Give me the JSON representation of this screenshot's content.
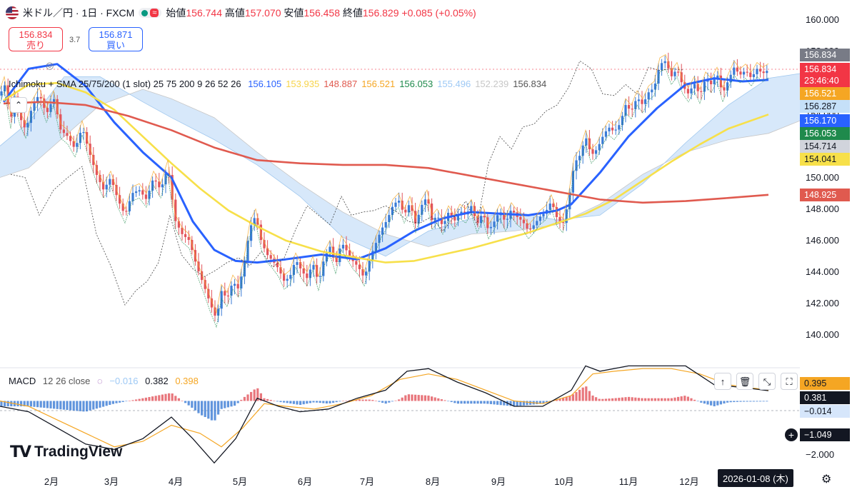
{
  "header": {
    "title": "米ドル／円 · 1日 · FXCM",
    "open_label": "始値",
    "open": "156.744",
    "high_label": "高値",
    "high": "157.070",
    "low_label": "安値",
    "low": "156.458",
    "close_label": "終値",
    "close": "156.829",
    "change": "+0.085 (+0.05%)"
  },
  "trade": {
    "sell_price": "156.834",
    "sell_label": "売り",
    "spread": "3.7",
    "buy_price": "156.871",
    "buy_label": "買い"
  },
  "legend": {
    "name": "Ichimoku + SMA 25/75/200 (1 slot) 25 75 200 9 26 52 26",
    "values": [
      "156.105",
      "153.935",
      "148.887",
      "156.521",
      "156.053",
      "155.496",
      "152.239",
      "156.834"
    ],
    "value_colors": [
      "#2962ff",
      "#f7d44a",
      "#e05a4f",
      "#f5a623",
      "#1f8a4c",
      "#9ec9f5",
      "#c7c7c7",
      "#555555"
    ]
  },
  "macd": {
    "label": "MACD",
    "params": "12 26 close",
    "hist": "−0.016",
    "macd": "0.382",
    "signal": "0.398"
  },
  "price_tags": [
    {
      "text": "156.834",
      "bg": "#787b86"
    },
    {
      "text": "156.834",
      "bg": "#f23645"
    },
    {
      "text": "23:46:40",
      "bg": "#f23645"
    },
    {
      "text": "156.521",
      "bg": "#f5a623"
    },
    {
      "text": "156.287",
      "bg": "#c5e0f8",
      "fg": "#131722"
    },
    {
      "text": "156.170",
      "bg": "#2962ff"
    },
    {
      "text": "156.053",
      "bg": "#1f8a4c"
    },
    {
      "text": "154.714",
      "bg": "#d1d4dc",
      "fg": "#131722"
    },
    {
      "text": "154.041",
      "bg": "#f7e04a",
      "fg": "#131722"
    },
    {
      "text": "148.925",
      "bg": "#e05a4f"
    }
  ],
  "macd_tags": [
    {
      "text": "0.395",
      "bg": "#f5a623",
      "fg": "#131722"
    },
    {
      "text": "0.381",
      "bg": "#131722"
    },
    {
      "text": "−0.014",
      "bg": "#d6e6fb",
      "fg": "#131722"
    },
    {
      "text": "−1.049",
      "bg": "#131722"
    }
  ],
  "date_tag": "2026-01-08 (木)",
  "brand": "TradingView",
  "chart_data": {
    "type": "line",
    "title": "米ドル／円 · 1日 · FXCM",
    "y_ticks": [
      "160.000",
      "158.000",
      "156.000",
      "154.000",
      "152.000",
      "150.000",
      "148.000",
      "146.000",
      "144.000",
      "142.000",
      "140.000"
    ],
    "ylim": [
      139.5,
      160.5
    ],
    "x_ticks": [
      "2月",
      "3月",
      "4月",
      "5月",
      "6月",
      "7月",
      "8月",
      "9月",
      "10月",
      "11月",
      "12月"
    ],
    "macd_ticks": [
      "−2.000"
    ],
    "price_path": [
      [
        0,
        155.2
      ],
      [
        6,
        156.0
      ],
      [
        10,
        155.0
      ],
      [
        15,
        153.6
      ],
      [
        20,
        155.2
      ],
      [
        28,
        153.8
      ],
      [
        36,
        153.0
      ],
      [
        45,
        154.5
      ],
      [
        55,
        155.3
      ],
      [
        65,
        154.0
      ],
      [
        75,
        155.1
      ],
      [
        85,
        153.0
      ],
      [
        95,
        152.6
      ],
      [
        105,
        151.8
      ],
      [
        115,
        153.2
      ],
      [
        125,
        151.6
      ],
      [
        135,
        150.2
      ],
      [
        145,
        149.2
      ],
      [
        155,
        150.0
      ],
      [
        165,
        148.6
      ],
      [
        175,
        147.6
      ],
      [
        185,
        149.0
      ],
      [
        195,
        149.2
      ],
      [
        205,
        148.6
      ],
      [
        215,
        150.0
      ],
      [
        225,
        149.2
      ],
      [
        235,
        150.7
      ],
      [
        245,
        147.3
      ],
      [
        255,
        146.4
      ],
      [
        265,
        146.0
      ],
      [
        275,
        144.4
      ],
      [
        285,
        143.2
      ],
      [
        295,
        141.9
      ],
      [
        303,
        141.0
      ],
      [
        310,
        142.8
      ],
      [
        318,
        142.3
      ],
      [
        326,
        143.4
      ],
      [
        334,
        142.9
      ],
      [
        342,
        144.6
      ],
      [
        350,
        146.8
      ],
      [
        358,
        147.6
      ],
      [
        366,
        145.9
      ],
      [
        374,
        145.1
      ],
      [
        382,
        144.7
      ],
      [
        390,
        144.2
      ],
      [
        398,
        143.4
      ],
      [
        406,
        143.7
      ],
      [
        414,
        144.8
      ],
      [
        422,
        144.1
      ],
      [
        430,
        143.6
      ],
      [
        438,
        144.6
      ],
      [
        446,
        143.3
      ],
      [
        454,
        144.9
      ],
      [
        462,
        145.6
      ],
      [
        470,
        144.4
      ],
      [
        478,
        145.9
      ],
      [
        486,
        145.3
      ],
      [
        494,
        144.7
      ],
      [
        502,
        144.3
      ],
      [
        510,
        143.6
      ],
      [
        518,
        144.9
      ],
      [
        526,
        145.8
      ],
      [
        534,
        146.7
      ],
      [
        542,
        147.3
      ],
      [
        550,
        148.2
      ],
      [
        558,
        148.6
      ],
      [
        566,
        147.6
      ],
      [
        574,
        148.4
      ],
      [
        582,
        147.0
      ],
      [
        590,
        148.2
      ],
      [
        598,
        148.8
      ],
      [
        605,
        147.2
      ],
      [
        612,
        147.6
      ],
      [
        620,
        146.9
      ],
      [
        628,
        147.8
      ],
      [
        636,
        147.2
      ],
      [
        644,
        147.9
      ],
      [
        652,
        147.6
      ],
      [
        660,
        148.2
      ],
      [
        668,
        147.0
      ],
      [
        676,
        147.8
      ],
      [
        684,
        146.6
      ],
      [
        692,
        147.2
      ],
      [
        700,
        147.9
      ],
      [
        708,
        147.1
      ],
      [
        716,
        148.0
      ],
      [
        724,
        147.5
      ],
      [
        732,
        147.2
      ],
      [
        740,
        146.6
      ],
      [
        748,
        147.0
      ],
      [
        756,
        147.5
      ],
      [
        764,
        147.8
      ],
      [
        772,
        148.5
      ],
      [
        780,
        147.4
      ],
      [
        788,
        147.0
      ],
      [
        796,
        148.5
      ],
      [
        804,
        150.9
      ],
      [
        812,
        151.4
      ],
      [
        820,
        152.6
      ],
      [
        828,
        151.4
      ],
      [
        836,
        151.8
      ],
      [
        844,
        152.6
      ],
      [
        852,
        153.2
      ],
      [
        860,
        152.9
      ],
      [
        868,
        153.4
      ],
      [
        876,
        154.6
      ],
      [
        884,
        154.2
      ],
      [
        892,
        155.1
      ],
      [
        900,
        154.6
      ],
      [
        908,
        155.4
      ],
      [
        916,
        155.7
      ],
      [
        924,
        157.2
      ],
      [
        932,
        157.4
      ],
      [
        940,
        156.4
      ],
      [
        948,
        156.9
      ],
      [
        956,
        155.8
      ],
      [
        964,
        155.3
      ],
      [
        972,
        156.0
      ],
      [
        980,
        155.2
      ],
      [
        988,
        156.3
      ],
      [
        996,
        155.9
      ],
      [
        1004,
        156.6
      ],
      [
        1012,
        155.3
      ],
      [
        1020,
        156.2
      ],
      [
        1028,
        157.0
      ],
      [
        1036,
        156.5
      ],
      [
        1044,
        156.8
      ],
      [
        1052,
        156.3
      ],
      [
        1060,
        156.9
      ],
      [
        1068,
        156.6
      ],
      [
        1076,
        156.83
      ]
    ],
    "series": [
      {
        "values": [
          [
            5,
            154.8
          ],
          [
            40,
            156.9
          ],
          [
            80,
            157.2
          ],
          [
            120,
            155.8
          ],
          [
            160,
            153.5
          ],
          [
            200,
            151.6
          ],
          [
            240,
            150.0
          ],
          [
            270,
            147.2
          ],
          [
            300,
            145.4
          ],
          [
            330,
            144.7
          ],
          [
            360,
            144.6
          ],
          [
            400,
            144.8
          ],
          [
            450,
            145.1
          ],
          [
            500,
            144.8
          ],
          [
            540,
            145.5
          ],
          [
            580,
            146.6
          ],
          [
            620,
            147.4
          ],
          [
            660,
            147.8
          ],
          [
            700,
            147.7
          ],
          [
            740,
            147.6
          ],
          [
            780,
            147.9
          ],
          [
            800,
            148.3
          ],
          [
            840,
            150.3
          ],
          [
            880,
            152.6
          ],
          [
            920,
            154.4
          ],
          [
            960,
            155.9
          ],
          [
            1000,
            156.3
          ],
          [
            1040,
            156.1
          ],
          [
            1076,
            156.2
          ]
        ]
      },
      {
        "values": [
          [
            5,
            154.9
          ],
          [
            40,
            155.9
          ],
          [
            80,
            156.0
          ],
          [
            120,
            155.4
          ],
          [
            160,
            154.3
          ],
          [
            200,
            152.6
          ],
          [
            240,
            150.9
          ],
          [
            280,
            149.3
          ],
          [
            320,
            147.9
          ],
          [
            360,
            146.9
          ],
          [
            400,
            146.0
          ],
          [
            450,
            145.3
          ],
          [
            500,
            144.9
          ],
          [
            540,
            144.6
          ],
          [
            580,
            144.7
          ],
          [
            620,
            145.1
          ],
          [
            660,
            145.5
          ],
          [
            700,
            146.0
          ],
          [
            740,
            146.5
          ],
          [
            780,
            147.1
          ],
          [
            820,
            147.7
          ],
          [
            860,
            148.6
          ],
          [
            900,
            149.8
          ],
          [
            940,
            151.0
          ],
          [
            980,
            152.1
          ],
          [
            1020,
            153.1
          ],
          [
            1076,
            154.0
          ]
        ]
      },
      {
        "values": [
          [
            5,
            154.7
          ],
          [
            60,
            154.8
          ],
          [
            120,
            154.6
          ],
          [
            180,
            153.9
          ],
          [
            240,
            153.0
          ],
          [
            300,
            151.9
          ],
          [
            360,
            151.1
          ],
          [
            420,
            150.9
          ],
          [
            480,
            150.8
          ],
          [
            540,
            150.8
          ],
          [
            600,
            150.6
          ],
          [
            660,
            150.1
          ],
          [
            720,
            149.6
          ],
          [
            780,
            149.1
          ],
          [
            840,
            148.6
          ],
          [
            900,
            148.4
          ],
          [
            960,
            148.5
          ],
          [
            1020,
            148.7
          ],
          [
            1076,
            148.9
          ]
        ]
      }
    ],
    "macd_series": {
      "macd_line": [
        [
          0,
          -0.2
        ],
        [
          40,
          -0.4
        ],
        [
          80,
          -1.0
        ],
        [
          120,
          -1.6
        ],
        [
          160,
          -1.8
        ],
        [
          200,
          -1.4
        ],
        [
          240,
          -0.6
        ],
        [
          270,
          -1.4
        ],
        [
          300,
          -2.3
        ],
        [
          330,
          -1.4
        ],
        [
          360,
          0.1
        ],
        [
          390,
          -0.2
        ],
        [
          420,
          -0.4
        ],
        [
          460,
          -0.3
        ],
        [
          500,
          0.1
        ],
        [
          540,
          0.4
        ],
        [
          570,
          1.1
        ],
        [
          600,
          1.2
        ],
        [
          640,
          0.7
        ],
        [
          680,
          0.3
        ],
        [
          720,
          -0.2
        ],
        [
          760,
          -0.2
        ],
        [
          800,
          0.4
        ],
        [
          820,
          1.3
        ],
        [
          840,
          1.1
        ],
        [
          880,
          1.3
        ],
        [
          920,
          1.3
        ],
        [
          960,
          1.3
        ],
        [
          1000,
          0.6
        ],
        [
          1040,
          0.5
        ],
        [
          1076,
          0.38
        ]
      ],
      "signal_line": [
        [
          0,
          0.0
        ],
        [
          40,
          -0.2
        ],
        [
          80,
          -0.7
        ],
        [
          120,
          -1.2
        ],
        [
          160,
          -1.7
        ],
        [
          200,
          -1.5
        ],
        [
          240,
          -0.9
        ],
        [
          280,
          -1.2
        ],
        [
          310,
          -1.7
        ],
        [
          340,
          -1.0
        ],
        [
          370,
          -0.1
        ],
        [
          400,
          -0.2
        ],
        [
          440,
          -0.3
        ],
        [
          480,
          -0.1
        ],
        [
          520,
          0.2
        ],
        [
          560,
          0.8
        ],
        [
          600,
          1.0
        ],
        [
          640,
          0.8
        ],
        [
          680,
          0.4
        ],
        [
          720,
          0.0
        ],
        [
          760,
          -0.1
        ],
        [
          800,
          0.2
        ],
        [
          830,
          1.0
        ],
        [
          860,
          1.1
        ],
        [
          900,
          1.2
        ],
        [
          940,
          1.2
        ],
        [
          980,
          1.0
        ],
        [
          1020,
          0.6
        ],
        [
          1076,
          0.4
        ]
      ]
    }
  }
}
